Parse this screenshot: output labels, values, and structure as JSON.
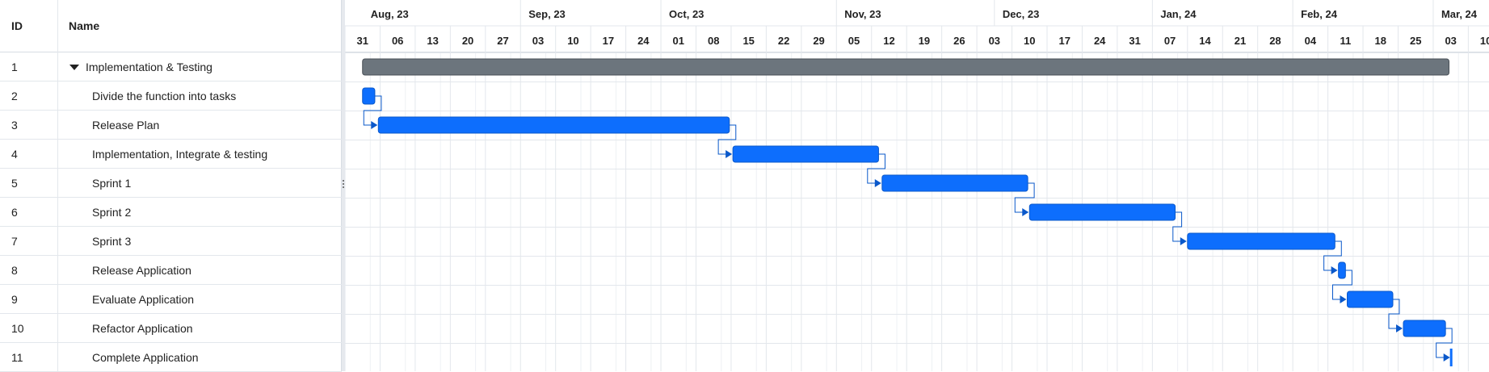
{
  "grid": {
    "columns": {
      "id": "ID",
      "name": "Name"
    },
    "rows": [
      {
        "id": "1",
        "name": "Implementation & Testing",
        "parent": true
      },
      {
        "id": "2",
        "name": "Divide the function into tasks"
      },
      {
        "id": "3",
        "name": "Release Plan"
      },
      {
        "id": "4",
        "name": "Implementation, Integrate & testing"
      },
      {
        "id": "5",
        "name": "Sprint 1"
      },
      {
        "id": "6",
        "name": "Sprint 2"
      },
      {
        "id": "7",
        "name": "Sprint 3"
      },
      {
        "id": "8",
        "name": "Release Application"
      },
      {
        "id": "9",
        "name": "Evaluate Application"
      },
      {
        "id": "10",
        "name": "Refactor Application"
      },
      {
        "id": "11",
        "name": "Complete Application"
      }
    ]
  },
  "timeline": {
    "months": [
      "Aug, 23",
      "Sep, 23",
      "Oct, 23",
      "Nov, 23",
      "Dec, 23",
      "Jan, 24",
      "Feb, 24",
      "Mar, 24"
    ],
    "weeks": [
      "31",
      "06",
      "13",
      "20",
      "27",
      "03",
      "10",
      "17",
      "24",
      "01",
      "08",
      "15",
      "22",
      "29",
      "05",
      "12",
      "19",
      "26",
      "03",
      "10",
      "17",
      "24",
      "31",
      "07",
      "14",
      "21",
      "28",
      "04",
      "11",
      "18",
      "25",
      "03",
      "10"
    ],
    "tasks": [
      {
        "row": 0,
        "type": "summary",
        "start_week": 0.5,
        "end_week": 31.45
      },
      {
        "row": 1,
        "type": "task",
        "start_week": 0.5,
        "end_week": 0.85
      },
      {
        "row": 2,
        "type": "task",
        "start_week": 0.95,
        "end_week": 10.95
      },
      {
        "row": 3,
        "type": "task",
        "start_week": 11.05,
        "end_week": 15.2
      },
      {
        "row": 4,
        "type": "task",
        "start_week": 15.3,
        "end_week": 19.45
      },
      {
        "row": 5,
        "type": "task",
        "start_week": 19.5,
        "end_week": 23.65
      },
      {
        "row": 6,
        "type": "task",
        "start_week": 24.0,
        "end_week": 28.2
      },
      {
        "row": 7,
        "type": "task",
        "start_week": 28.3,
        "end_week": 28.5
      },
      {
        "row": 8,
        "type": "task",
        "start_week": 28.55,
        "end_week": 29.85
      },
      {
        "row": 9,
        "type": "task",
        "start_week": 30.15,
        "end_week": 31.35
      },
      {
        "row": 10,
        "type": "milestone",
        "start_week": 31.5,
        "end_week": 31.5
      }
    ],
    "colors": {
      "task": "#0d6efd",
      "task_border": "#0a58ca",
      "summary": "#6c757d",
      "summary_border": "#495057",
      "connector": "#0a58ca",
      "grid_line": "#e3e7ec",
      "weekend_line": "#eef1f4"
    }
  }
}
